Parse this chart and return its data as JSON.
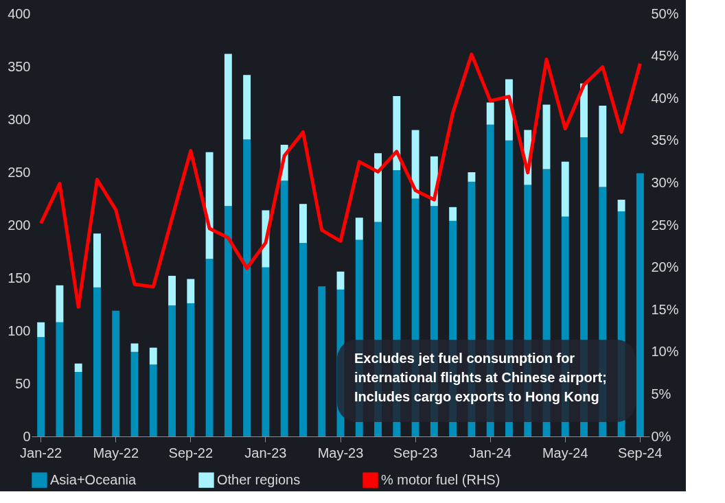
{
  "chart_data": {
    "type": "bar",
    "stacked": true,
    "categories": [
      "Jan-22",
      null,
      null,
      null,
      "May-22",
      null,
      null,
      null,
      "Sep-22",
      null,
      null,
      null,
      "Jan-23",
      null,
      null,
      null,
      "May-23",
      null,
      null,
      null,
      "Sep-23",
      null,
      null,
      null,
      "Jan-24",
      null,
      null,
      null,
      "May-24",
      null,
      null,
      null,
      "Sep-24"
    ],
    "series": [
      {
        "name": "Asia+Oceania",
        "color": "#008fbb",
        "values": [
          94,
          108,
          61,
          141,
          119,
          80,
          68,
          124,
          126,
          168,
          218,
          281,
          160,
          242,
          183,
          142,
          139,
          186,
          203,
          252,
          225,
          218,
          204,
          241,
          295,
          280,
          238,
          253,
          208,
          283,
          236,
          213,
          249
        ]
      },
      {
        "name": "Other regions",
        "color": "#a6f2ff",
        "values": [
          14,
          35,
          8,
          51,
          null,
          8,
          16,
          28,
          23,
          101,
          144,
          61,
          54,
          34,
          37,
          null,
          17,
          21,
          65,
          70,
          65,
          47,
          13,
          9,
          21,
          58,
          52,
          61,
          52,
          51,
          77,
          11,
          null
        ]
      },
      {
        "name": "% motor fuel (RHS)",
        "color": "#ff0000",
        "type": "line",
        "axis": "y2",
        "values": [
          25.2,
          29.9,
          15.3,
          30.4,
          26.8,
          18.0,
          17.7,
          25.8,
          33.8,
          24.6,
          23.5,
          19.9,
          22.9,
          33.2,
          36.0,
          24.4,
          23.1,
          32.5,
          31.3,
          33.7,
          29.1,
          28.0,
          38.3,
          45.2,
          39.7,
          40.2,
          31.2,
          44.6,
          36.4,
          41.6,
          43.7,
          36.0,
          44.1
        ]
      }
    ],
    "ylim": [
      0,
      400
    ],
    "yticks": [
      0,
      50,
      100,
      150,
      200,
      250,
      300,
      350,
      400
    ],
    "y2lim": [
      0,
      50
    ],
    "y2ticks": [
      {
        "value": 0,
        "label": "0%"
      },
      {
        "value": 5,
        "label": "5%"
      },
      {
        "value": 10,
        "label": "10%"
      },
      {
        "value": 15,
        "label": "15%"
      },
      {
        "value": 20,
        "label": "20%"
      },
      {
        "value": 25,
        "label": "25%"
      },
      {
        "value": 30,
        "label": "30%"
      },
      {
        "value": 35,
        "label": "35%"
      },
      {
        "value": 40,
        "label": "40%"
      },
      {
        "value": 45,
        "label": "45%"
      },
      {
        "value": 50,
        "label": "50%"
      }
    ],
    "grid": false,
    "legend": "bottom",
    "marker": "none",
    "line_style": "solid",
    "annotations": [
      "Excludes jet fuel consumption for\ninternational flights at Chinese airport;\nIncludes cargo exports to Hong Kong"
    ]
  }
}
